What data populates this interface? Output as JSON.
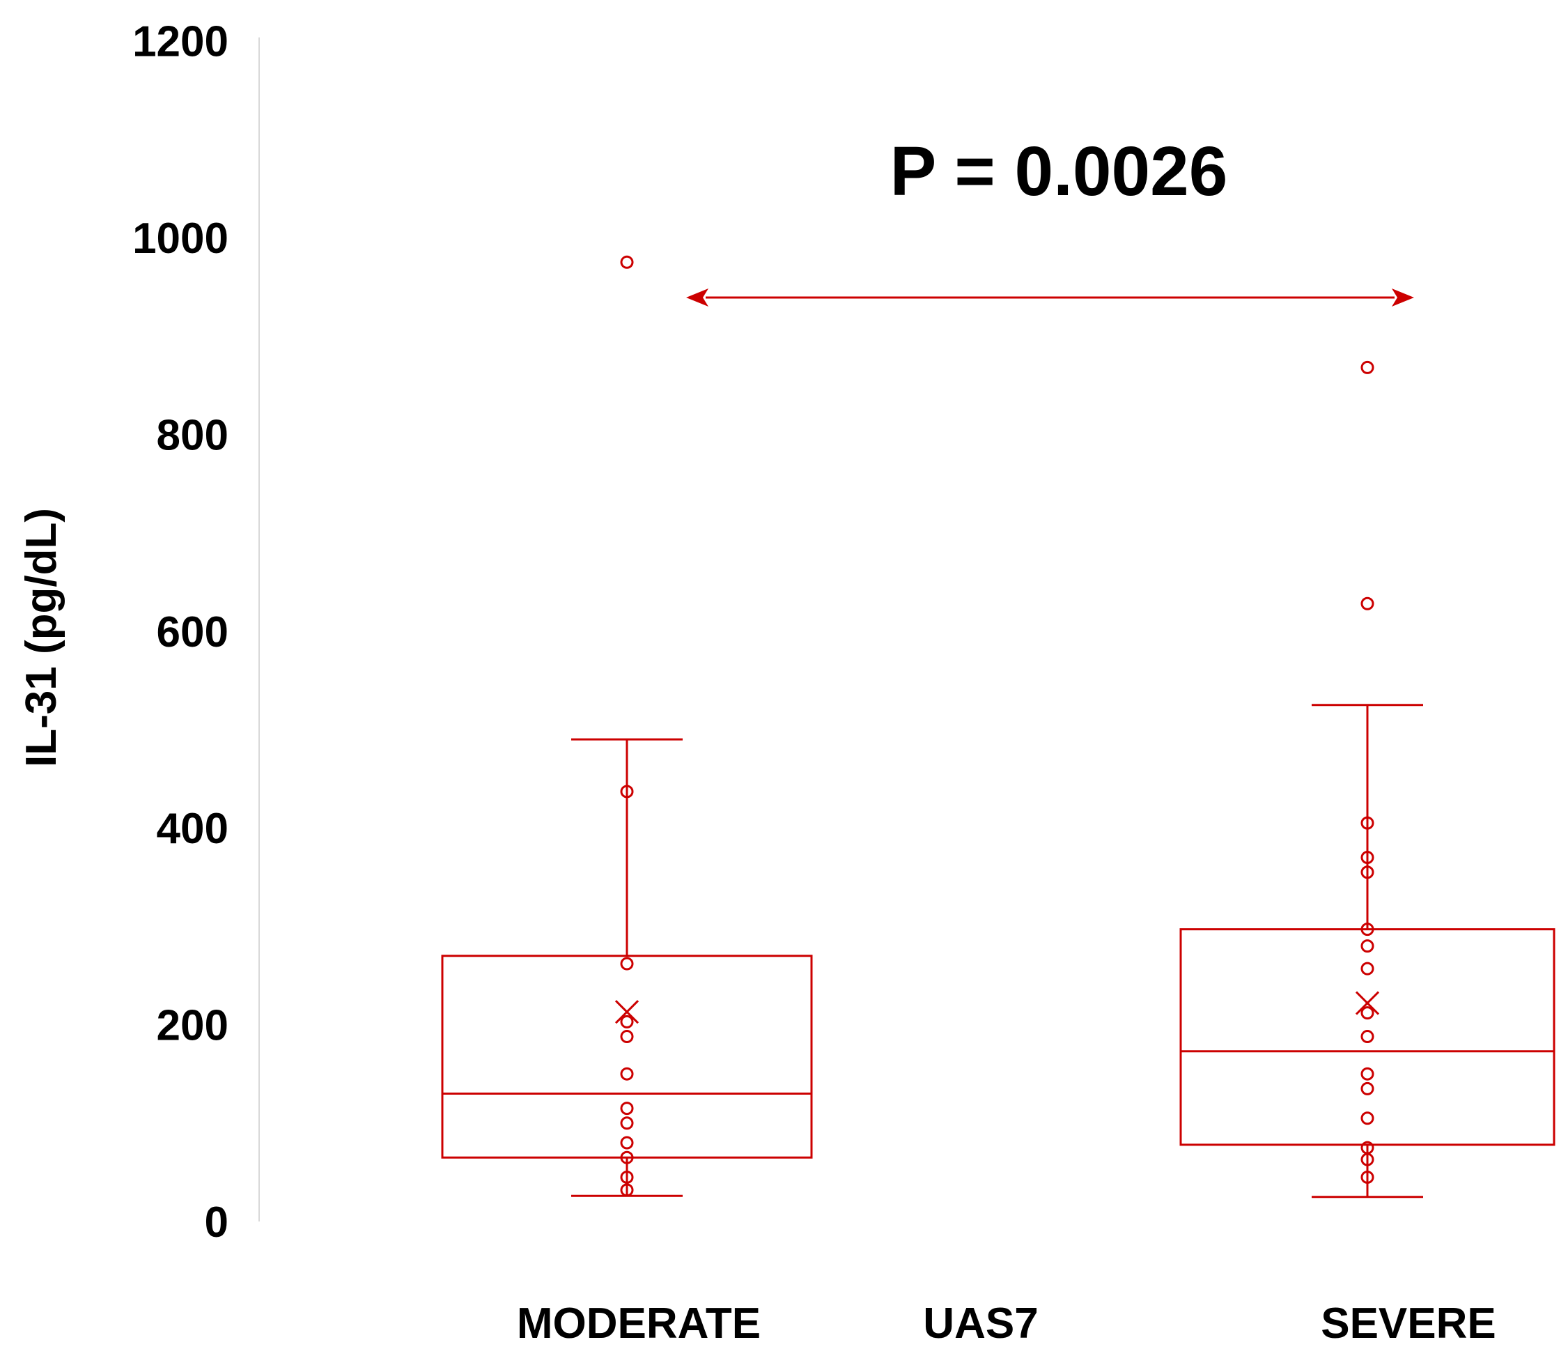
{
  "chart_data": {
    "type": "box",
    "title": "",
    "xlabel": "UAS7",
    "ylabel": "IL-31 (pg/dL)",
    "ylim": [
      0,
      1200
    ],
    "yticks": [
      0,
      200,
      400,
      600,
      800,
      1000,
      1200
    ],
    "grid": false,
    "legend": "none",
    "colors": {
      "series": "#cc0000",
      "axis": "#d9d9d9",
      "text": "#000000"
    },
    "annotation": {
      "text": "P = 0.0026",
      "comparison": [
        "MODERATE",
        "SEVERE"
      ]
    },
    "groups": [
      {
        "name": "MODERATE",
        "whisker_low": 26,
        "q1": 65,
        "median": 130,
        "q3": 270,
        "whisker_high": 490,
        "mean": 213,
        "points": [
          975,
          437,
          262,
          203,
          188,
          150,
          115,
          100,
          80,
          65,
          45,
          32
        ]
      },
      {
        "name": "SEVERE",
        "whisker_low": 25,
        "q1": 78,
        "median": 173,
        "q3": 297,
        "whisker_high": 525,
        "mean": 222,
        "points": [
          868,
          628,
          405,
          370,
          355,
          297,
          280,
          257,
          212,
          188,
          150,
          135,
          105,
          75,
          63,
          45
        ]
      }
    ]
  }
}
